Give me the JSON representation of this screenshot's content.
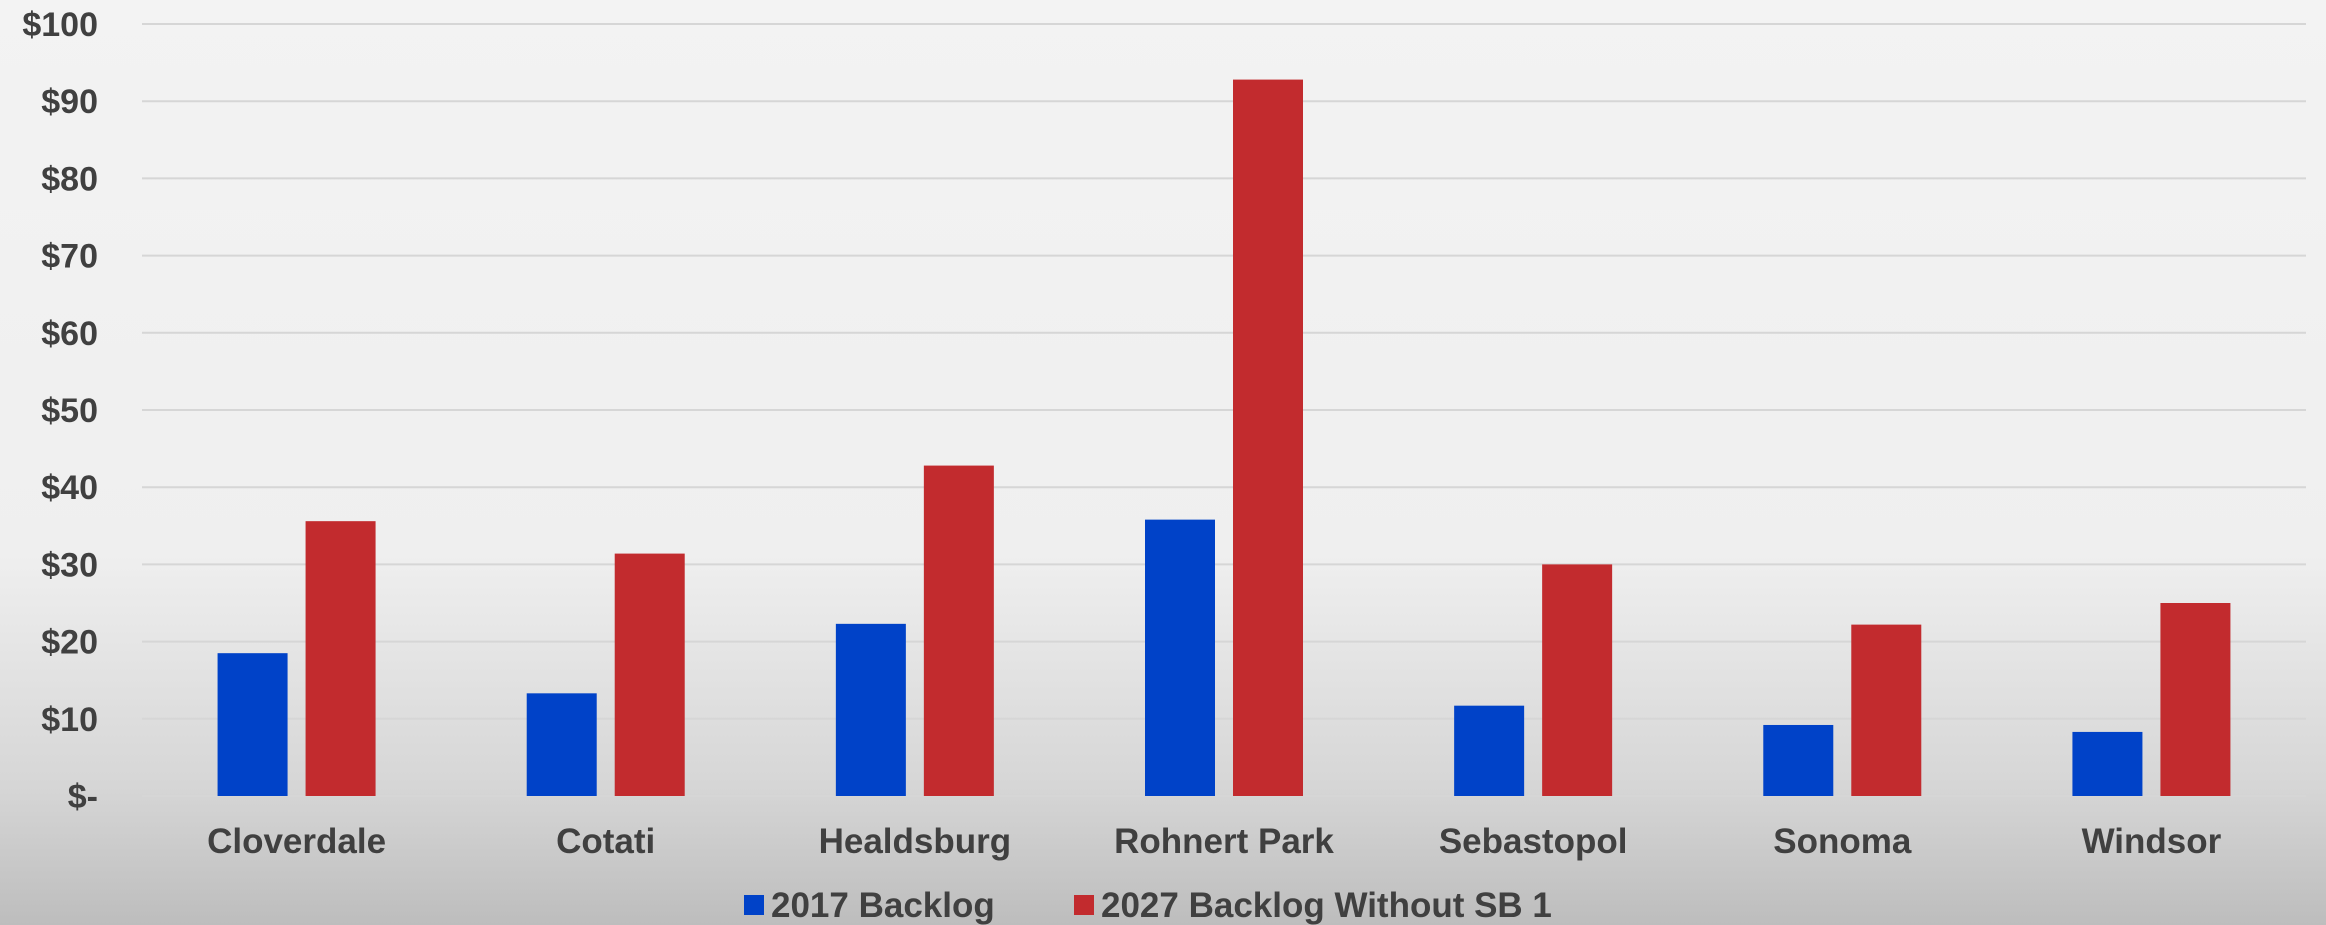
{
  "chart_data": {
    "type": "bar",
    "categories": [
      "Cloverdale",
      "Cotati",
      "Healdsburg",
      "Rohnert Park",
      "Sebastopol",
      "Sonoma",
      "Windsor"
    ],
    "series": [
      {
        "name": "2017 Backlog",
        "color": "#0042c8",
        "values": [
          18.5,
          13.3,
          22.3,
          35.8,
          11.7,
          9.2,
          8.3
        ]
      },
      {
        "name": "2027 Backlog Without SB 1",
        "color": "#c22b2e",
        "values": [
          35.6,
          31.4,
          42.8,
          92.8,
          30.0,
          22.2,
          25.0
        ]
      }
    ],
    "yticks": [
      {
        "value": 0,
        "label": "$-"
      },
      {
        "value": 10,
        "label": "$10"
      },
      {
        "value": 20,
        "label": "$20"
      },
      {
        "value": 30,
        "label": "$30"
      },
      {
        "value": 40,
        "label": "$40"
      },
      {
        "value": 50,
        "label": "$50"
      },
      {
        "value": 60,
        "label": "$60"
      },
      {
        "value": 70,
        "label": "$70"
      },
      {
        "value": 80,
        "label": "$80"
      },
      {
        "value": 90,
        "label": "$90"
      },
      {
        "value": 100,
        "label": "$100"
      }
    ],
    "ylim": [
      0,
      100
    ],
    "grid": true,
    "legend_position": "bottom",
    "title": "",
    "xlabel": "",
    "ylabel": ""
  }
}
